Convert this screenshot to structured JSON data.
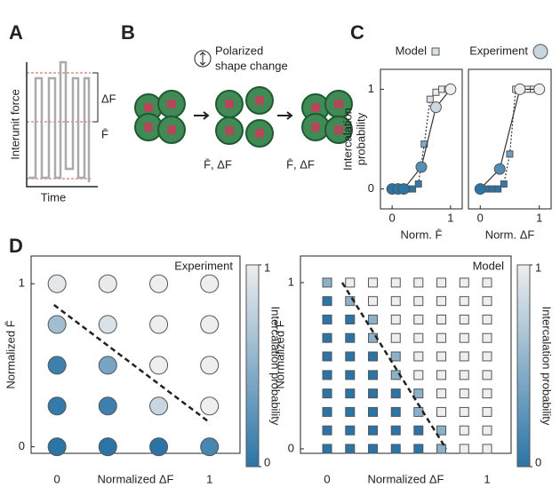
{
  "panels": {
    "A": {
      "label": "A",
      "y_label": "Interunit force",
      "x_label": "Time",
      "delta": "ΔF",
      "mean": "F̄"
    },
    "B": {
      "label": "B",
      "note": [
        "Polarized",
        "shape change"
      ],
      "condition_1": "F̄, ΔF",
      "condition_2": "F̄, ΔF"
    },
    "C": {
      "label": "C"
    },
    "D": {
      "label": "D"
    }
  },
  "colormap": [
    "#2a74a6",
    "#eeeeee"
  ],
  "chart_data": [
    {
      "type": "line",
      "xlabel": "Norm. F̄",
      "ylabel": [
        "Intercalation",
        "probability"
      ],
      "xlim": [
        -0.2,
        1.2
      ],
      "ylim": [
        -0.2,
        1.2
      ],
      "xticks": [
        0,
        1
      ],
      "yticks": [
        0,
        1
      ],
      "series": [
        {
          "name": "Model",
          "marker": "square",
          "dashed": true,
          "x": [
            0.05,
            0.15,
            0.25,
            0.35,
            0.45,
            0.55,
            0.65,
            0.75,
            0.85,
            0.95
          ],
          "values": [
            0,
            0,
            0,
            0,
            0.05,
            0.45,
            0.9,
            0.97,
            1,
            1
          ]
        },
        {
          "name": "Experiment",
          "marker": "circle",
          "dashed": false,
          "x": [
            0,
            0.1,
            0.2,
            0.5,
            0.75,
            1
          ],
          "values": [
            0,
            0,
            0,
            0.22,
            0.82,
            1
          ]
        }
      ]
    },
    {
      "type": "line",
      "xlabel": "Norm. ΔF",
      "xlim": [
        -0.2,
        1.2
      ],
      "ylim": [
        -0.2,
        1.2
      ],
      "xticks": [
        0,
        1
      ],
      "series": [
        {
          "marker": "square",
          "dashed": true,
          "x": [
            0.1,
            0.2,
            0.3,
            0.4,
            0.5,
            0.6,
            0.7,
            0.8,
            0.9
          ],
          "values": [
            0,
            0,
            0,
            0.05,
            0.35,
            1,
            1,
            1,
            1
          ]
        },
        {
          "marker": "circle",
          "dashed": false,
          "x": [
            0,
            0.33,
            0.67,
            1
          ],
          "values": [
            0,
            0.2,
            1,
            1
          ]
        }
      ]
    },
    {
      "type": "heatmap",
      "title": "Experiment",
      "marker": "circle",
      "xlabel": "Normalized ΔF",
      "ylabel": "Normalized F̄",
      "xlim": [
        -0.17,
        1.2
      ],
      "ylim": [
        -0.04,
        1.17
      ],
      "xticks": [
        0,
        1
      ],
      "yticks": [
        0,
        1
      ],
      "x": [
        0,
        0.333,
        0.667,
        1
      ],
      "y": [
        1,
        0.75,
        0.5,
        0.25,
        0
      ],
      "z": [
        [
          0.95,
          0.97,
          1,
          1
        ],
        [
          0.6,
          0.9,
          1,
          1
        ],
        [
          0.1,
          0.4,
          1,
          1
        ],
        [
          0.05,
          0.1,
          0.8,
          1
        ],
        [
          0,
          0,
          0,
          0.15
        ]
      ],
      "boundary": {
        "x": [
          -0.02,
          1
        ],
        "y": [
          0.87,
          0.15
        ]
      },
      "colorbar": {
        "label": "Intercalation probability",
        "ticks": [
          0,
          1
        ]
      }
    },
    {
      "type": "heatmap",
      "title": "Model",
      "marker": "square",
      "xlabel": "Normalized ΔF",
      "ylabel": "Normalized F̄",
      "xlim": [
        -0.167,
        1.15
      ],
      "ylim": [
        -0.027,
        1.16
      ],
      "xticks": [
        0,
        1
      ],
      "yticks": [
        0,
        1
      ],
      "x": [
        0,
        0.143,
        0.286,
        0.429,
        0.571,
        0.714,
        0.857,
        1
      ],
      "y": [
        1,
        0.889,
        0.778,
        0.667,
        0.556,
        0.444,
        0.333,
        0.222,
        0.111,
        0
      ],
      "z": [
        [
          0.5,
          1,
          1,
          1,
          1,
          1,
          1,
          1
        ],
        [
          0,
          0.5,
          1,
          1,
          1,
          1,
          1,
          1
        ],
        [
          0,
          0,
          0.5,
          1,
          1,
          1,
          1,
          1
        ],
        [
          0,
          0,
          0.5,
          1,
          1,
          1,
          1,
          1
        ],
        [
          0,
          0,
          0,
          0.5,
          1,
          1,
          1,
          1
        ],
        [
          0,
          0,
          0,
          0.5,
          1,
          1,
          1,
          1
        ],
        [
          0,
          0,
          0,
          0,
          0.5,
          1,
          1,
          1
        ],
        [
          0,
          0,
          0,
          0,
          0.5,
          1,
          1,
          1
        ],
        [
          0,
          0,
          0,
          0,
          0,
          0.5,
          1,
          1
        ],
        [
          0,
          0,
          0,
          0,
          0,
          0.5,
          1,
          1
        ]
      ],
      "boundary": {
        "x": [
          0.094,
          0.744
        ],
        "y": [
          1,
          0
        ]
      },
      "colorbar": {
        "label": "Intercalation probability",
        "ticks": [
          0,
          1
        ]
      }
    }
  ]
}
